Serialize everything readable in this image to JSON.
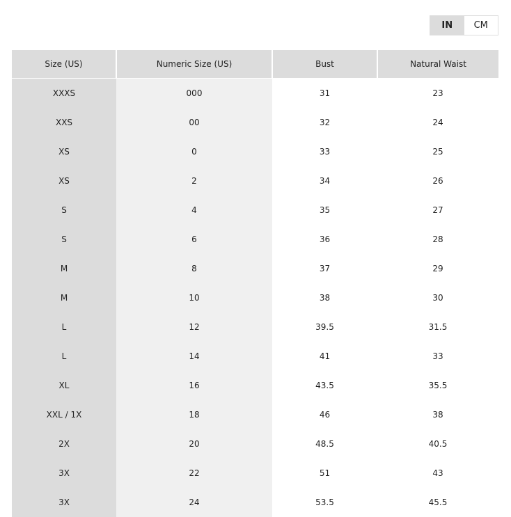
{
  "unit_toggle": {
    "options": [
      "IN",
      "CM"
    ],
    "selected": "IN"
  },
  "table": {
    "headers": [
      "Size (US)",
      "Numeric Size (US)",
      "Bust",
      "Natural Waist"
    ],
    "rows": [
      [
        "XXXS",
        "000",
        "31",
        "23"
      ],
      [
        "XXS",
        "00",
        "32",
        "24"
      ],
      [
        "XS",
        "0",
        "33",
        "25"
      ],
      [
        "XS",
        "2",
        "34",
        "26"
      ],
      [
        "S",
        "4",
        "35",
        "27"
      ],
      [
        "S",
        "6",
        "36",
        "28"
      ],
      [
        "M",
        "8",
        "37",
        "29"
      ],
      [
        "M",
        "10",
        "38",
        "30"
      ],
      [
        "L",
        "12",
        "39.5",
        "31.5"
      ],
      [
        "L",
        "14",
        "41",
        "33"
      ],
      [
        "XL",
        "16",
        "43.5",
        "35.5"
      ],
      [
        "XXL / 1X",
        "18",
        "46",
        "38"
      ],
      [
        "2X",
        "20",
        "48.5",
        "40.5"
      ],
      [
        "3X",
        "22",
        "51",
        "43"
      ],
      [
        "3X",
        "24",
        "53.5",
        "45.5"
      ]
    ]
  }
}
